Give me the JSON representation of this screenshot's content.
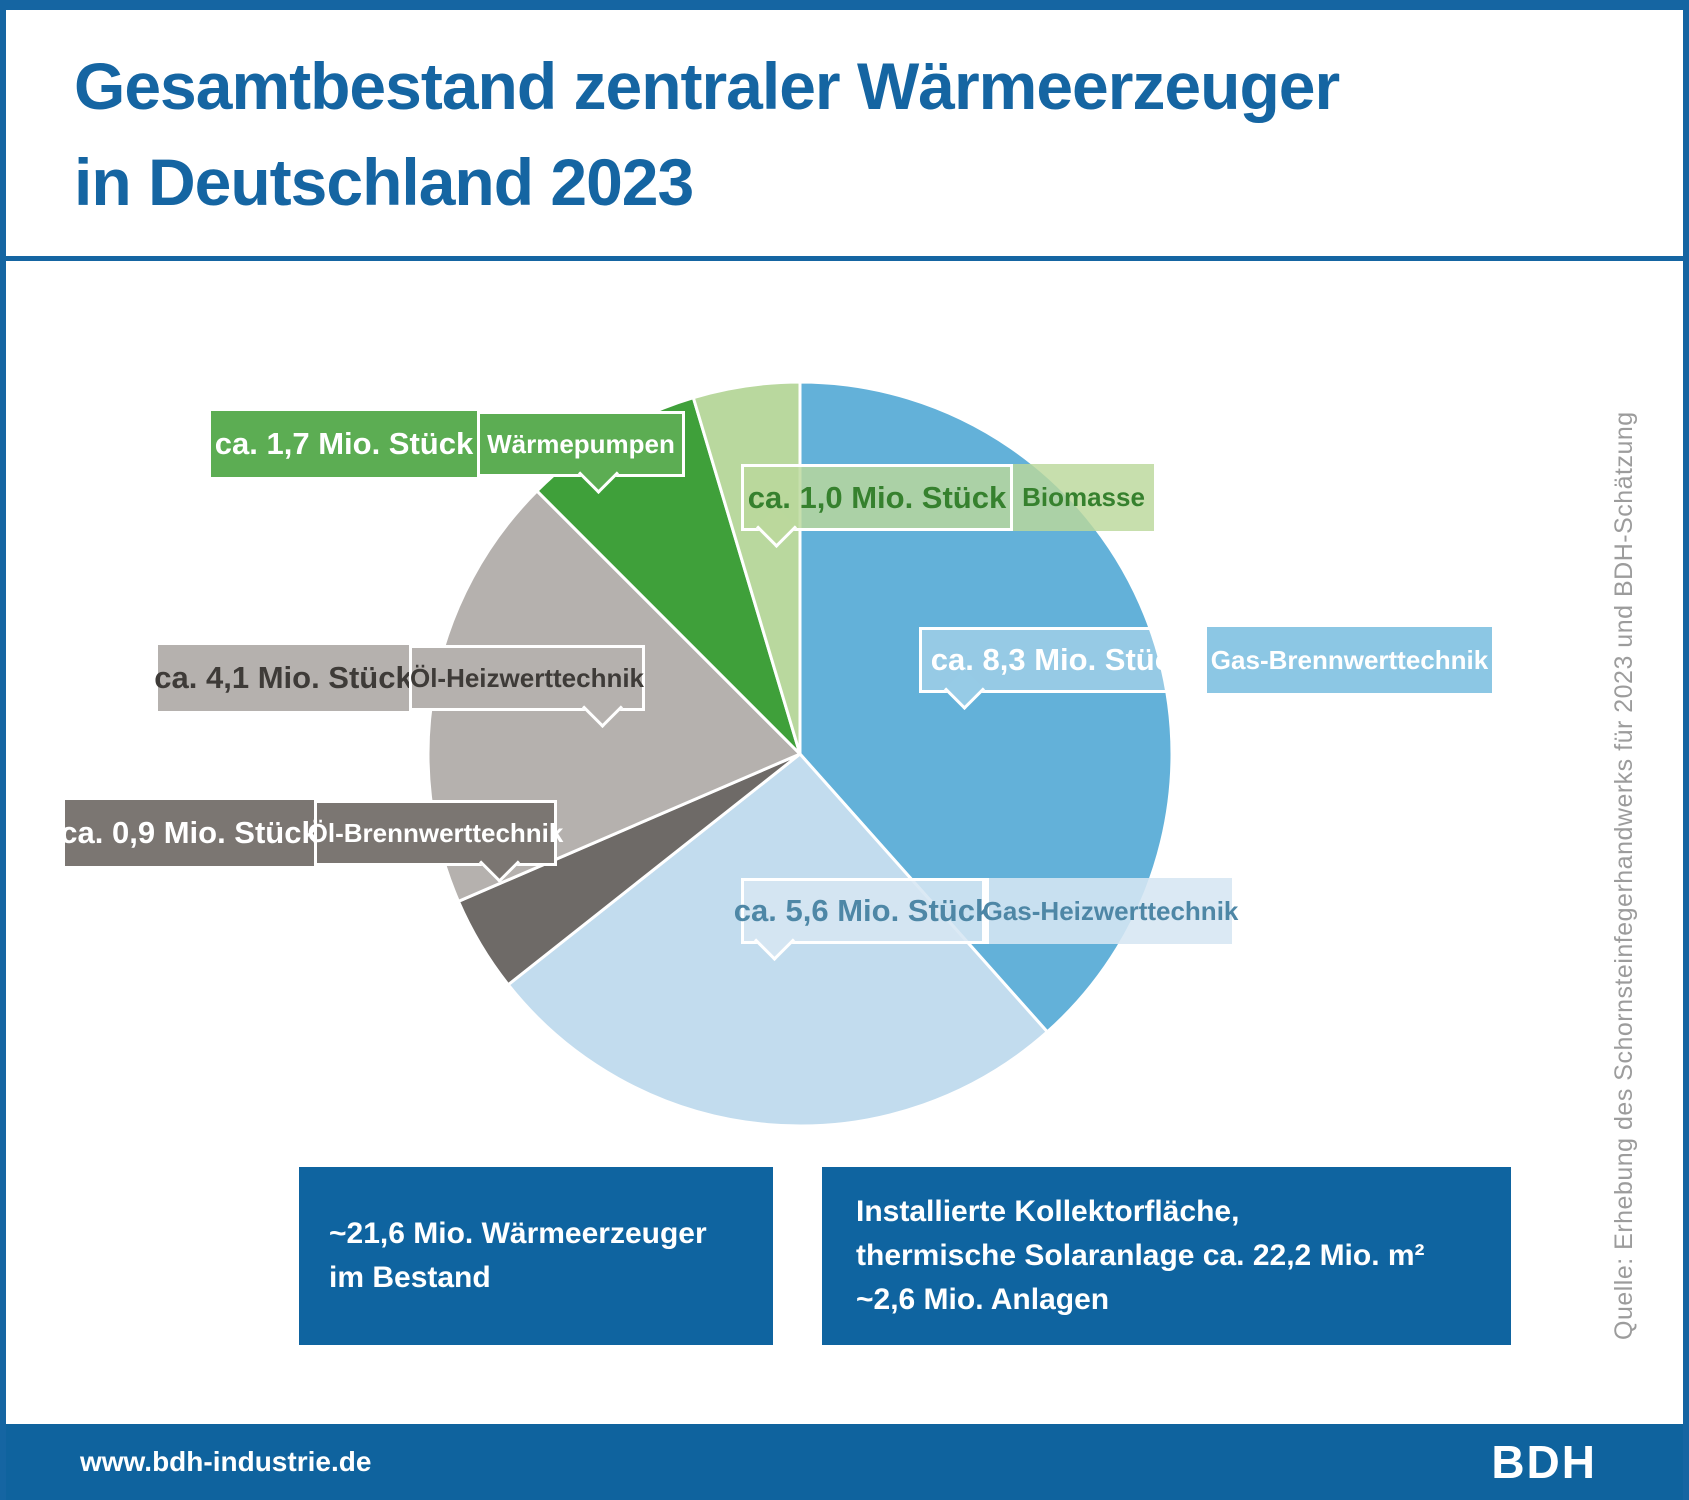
{
  "page": {
    "title_line1": "Gesamtbestand zentraler Wärmeerzeuger",
    "title_line2": "in Deutschland 2023",
    "source_note": "Quelle: Erhebung des Schornsteinfegerhandwerks für 2023 und BDH-Schätzung"
  },
  "chart_data": {
    "type": "pie",
    "title": "Gesamtbestand zentraler Wärmeerzeuger in Deutschland 2023",
    "unit": "Mio. Stück",
    "total": 21.6,
    "start_angle_deg": 0,
    "direction": "clockwise",
    "legend_position": "callout-labels",
    "slices": [
      {
        "label": "Gas-Brennwerttechnik",
        "value": 8.3,
        "value_label": "ca. 8,3 Mio. Stück",
        "color": "#63b1d9"
      },
      {
        "label": "Gas-Heizwerttechnik",
        "value": 5.6,
        "value_label": "ca. 5,6 Mio. Stück",
        "color": "#c2dcee"
      },
      {
        "label": "Öl-Brennwerttechnik",
        "value": 0.9,
        "value_label": "ca. 0,9 Mio. Stück",
        "color": "#6e6a67"
      },
      {
        "label": "Öl-Heizwerttechnik",
        "value": 4.1,
        "value_label": "ca. 4,1 Mio. Stück",
        "color": "#b5b1ae"
      },
      {
        "label": "Wärmepumpen",
        "value": 1.7,
        "value_label": "ca. 1,7 Mio. Stück",
        "color": "#3fa03a"
      },
      {
        "label": "Biomasse",
        "value": 1.0,
        "value_label": "ca. 1,0 Mio. Stück",
        "color": "#b9d89e"
      }
    ]
  },
  "info_boxes": [
    {
      "lines": [
        "~21,6 Mio. Wärmeerzeuger",
        "im Bestand"
      ]
    },
    {
      "lines": [
        "Installierte Kollektorfläche,",
        "thermische Solaranlage ca. 22,2 Mio. m²",
        "~2,6 Mio. Anlagen"
      ]
    }
  ],
  "footer": {
    "website": "www.bdh-industrie.de",
    "logo": "BDH"
  },
  "colors": {
    "brand_blue": "#1565a2",
    "footer_blue": "#0f639e",
    "info_box_blue": "#0f64a0",
    "source_gray": "#9c9c9c"
  }
}
